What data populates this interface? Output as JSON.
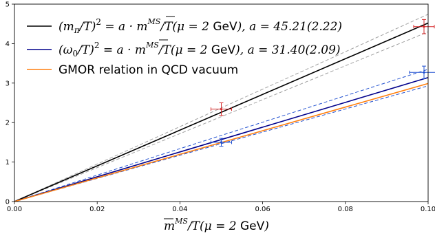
{
  "chart_data": {
    "type": "line",
    "xlim": [
      0,
      0.1
    ],
    "ylim": [
      0,
      5
    ],
    "x_ticks": [
      "0.00",
      "0.02",
      "0.04",
      "0.06",
      "0.08",
      "0.10"
    ],
    "y_ticks": [
      "0",
      "1",
      "2",
      "3",
      "4",
      "5"
    ],
    "xlabel": "m̄^{MS}/T(μ = 2 GeV)",
    "xlabel_parts": {
      "m": "m",
      "sup": "MS",
      "rest": "/T(μ = 2 ",
      "unit": "GeV",
      "close": ")"
    },
    "grid": false,
    "legend_placement": "top-left",
    "series": [
      {
        "name": "(m_π/T)^2 = a · m̄^{MS}/T(μ = 2 GeV), a = 45.21(2.22)",
        "label_parts": {
          "pre": "(m",
          "sub": "π",
          "mid": "/T)",
          "sup2": "2",
          "eq": " = a · m",
          "supms": "MS",
          "post": "/T(μ = 2 ",
          "unit": "GeV",
          "tail": "), a = 45.21(2.22)"
        },
        "slope": 45.21,
        "slope_err": 2.22,
        "color": "#000000",
        "band_color": "#a0a0a0",
        "points": [
          {
            "x": 0.05,
            "y": 2.34,
            "xerr": 0.0025,
            "yerr": 0.16
          },
          {
            "x": 0.099,
            "y": 4.43,
            "xerr": 0.0025,
            "yerr": 0.18
          }
        ],
        "point_color": "#d62728"
      },
      {
        "name": "(ω_0/T)^2 = a · m̄^{MS}/T(μ = 2 GeV), a = 31.40(2.09)",
        "label_parts": {
          "pre": "(ω",
          "sub": "0",
          "mid": "/T)",
          "sup2": "2",
          "eq": " = a · m",
          "supms": "MS",
          "post": "/T(μ = 2 ",
          "unit": "GeV",
          "tail": "), a = 31.40(2.09)"
        },
        "slope": 31.4,
        "slope_err": 2.09,
        "color": "#00008b",
        "band_color": "#1f4fd0",
        "points": [
          {
            "x": 0.05,
            "y": 1.5,
            "xerr": 0.0025,
            "yerr": 0.1
          },
          {
            "x": 0.099,
            "y": 3.27,
            "xerr": 0.0035,
            "yerr": 0.16
          }
        ],
        "point_color": "#1f4fd0"
      },
      {
        "name": "GMOR relation in QCD vacuum",
        "slope": 29.9,
        "color": "#ff7f0e"
      }
    ]
  }
}
